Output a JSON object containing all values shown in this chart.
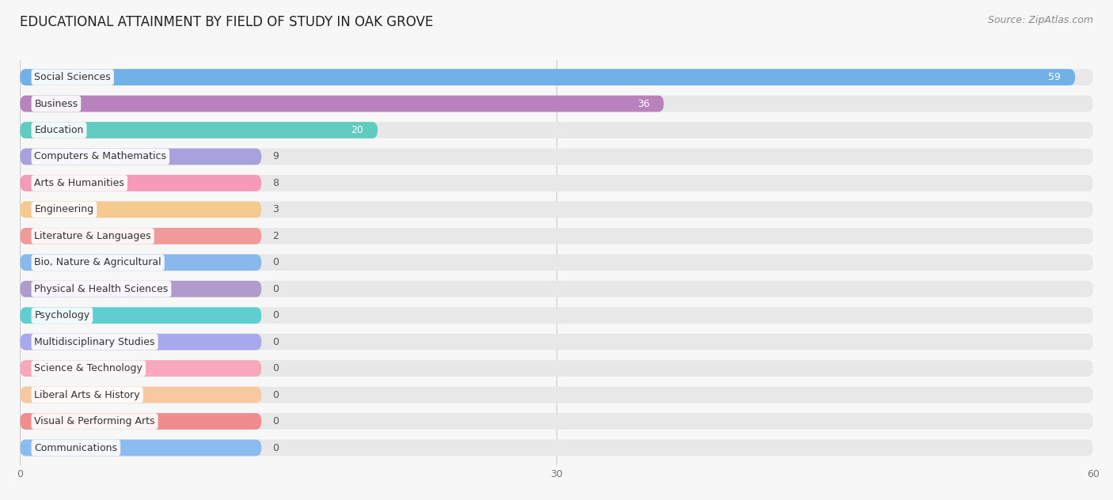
{
  "title": "EDUCATIONAL ATTAINMENT BY FIELD OF STUDY IN OAK GROVE",
  "source": "Source: ZipAtlas.com",
  "categories": [
    "Social Sciences",
    "Business",
    "Education",
    "Computers & Mathematics",
    "Arts & Humanities",
    "Engineering",
    "Literature & Languages",
    "Bio, Nature & Agricultural",
    "Physical & Health Sciences",
    "Psychology",
    "Multidisciplinary Studies",
    "Science & Technology",
    "Liberal Arts & History",
    "Visual & Performing Arts",
    "Communications"
  ],
  "values": [
    59,
    36,
    20,
    9,
    8,
    3,
    2,
    0,
    0,
    0,
    0,
    0,
    0,
    0,
    0
  ],
  "bar_colors": [
    "#72b0e8",
    "#b882bc",
    "#60ccc0",
    "#a8a2dc",
    "#f59ab8",
    "#f5ca8e",
    "#f09a9a",
    "#88b8ec",
    "#b09ccc",
    "#5ecece",
    "#a8a8ec",
    "#f8a8bc",
    "#f8c8a0",
    "#f08c8c",
    "#8abcf0"
  ],
  "xlim": [
    0,
    60
  ],
  "xticks": [
    0,
    30,
    60
  ],
  "background_color": "#f7f7f7",
  "bar_bg_color": "#e8e8e8",
  "title_fontsize": 12,
  "label_fontsize": 9,
  "value_fontsize": 9,
  "source_fontsize": 9,
  "min_bar_width": 13.5
}
